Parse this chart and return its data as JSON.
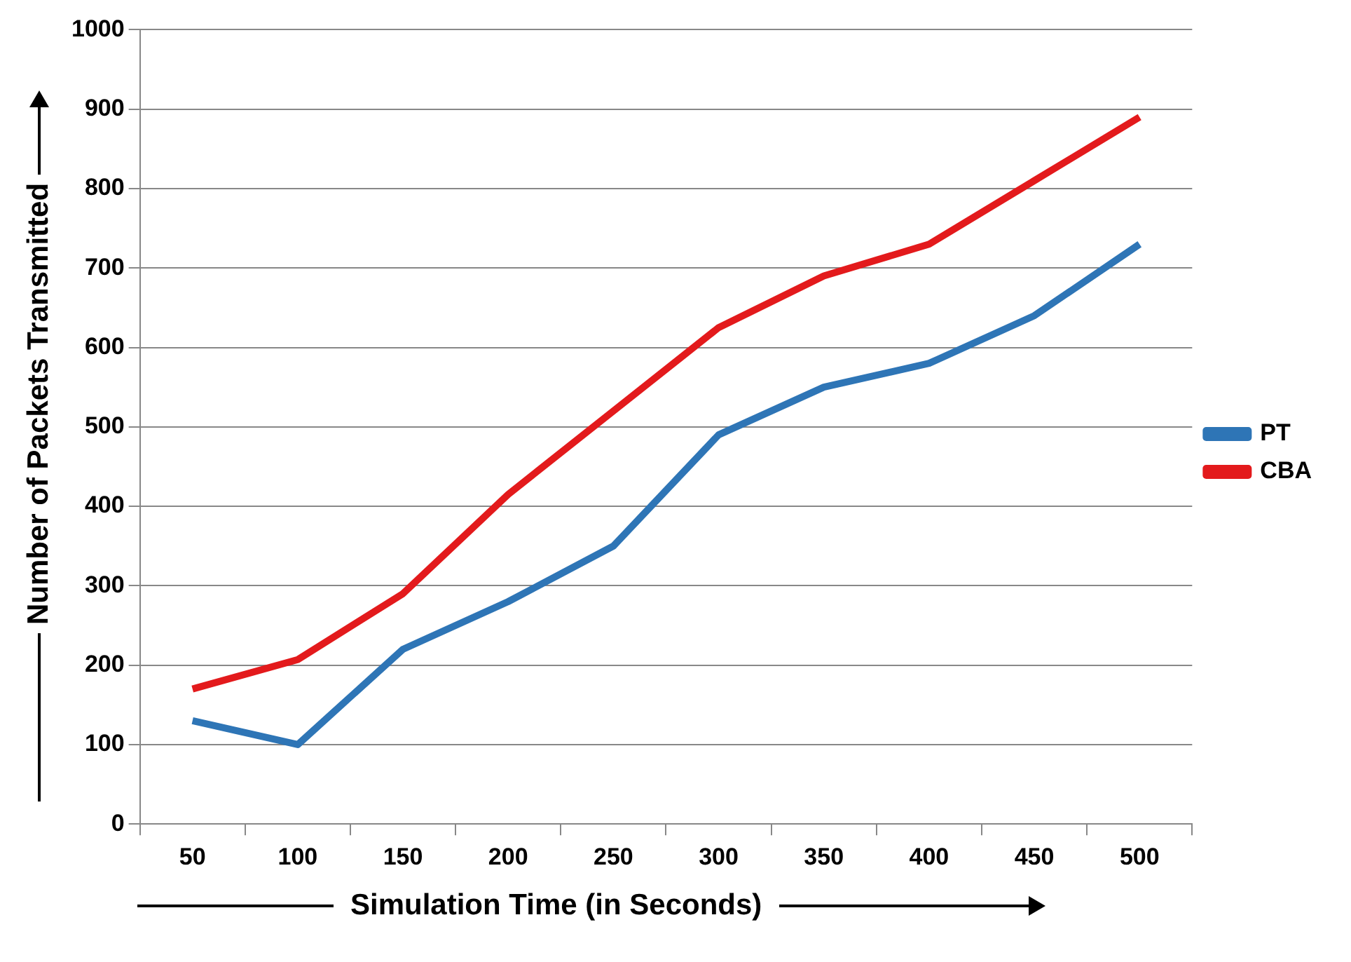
{
  "chart_data": {
    "type": "line",
    "xlabel": "Simulation Time (in Seconds)",
    "ylabel": "Number of Packets  Transmitted",
    "categories": [
      "50",
      "100",
      "150",
      "200",
      "250",
      "300",
      "350",
      "400",
      "450",
      "500"
    ],
    "series": [
      {
        "name": "PT",
        "color": "#2e75b6",
        "values": [
          130,
          100,
          220,
          280,
          350,
          490,
          550,
          580,
          640,
          730
        ]
      },
      {
        "name": "CBA",
        "color": "#e31a1c",
        "values": [
          170,
          207,
          290,
          415,
          520,
          625,
          690,
          730,
          810,
          890
        ]
      }
    ],
    "ylim": [
      0,
      1000
    ],
    "yticks": [
      0,
      100,
      200,
      300,
      400,
      500,
      600,
      700,
      800,
      900,
      1000
    ],
    "grid": "y",
    "legend": "right",
    "marker": "none",
    "line_style": "solid"
  }
}
